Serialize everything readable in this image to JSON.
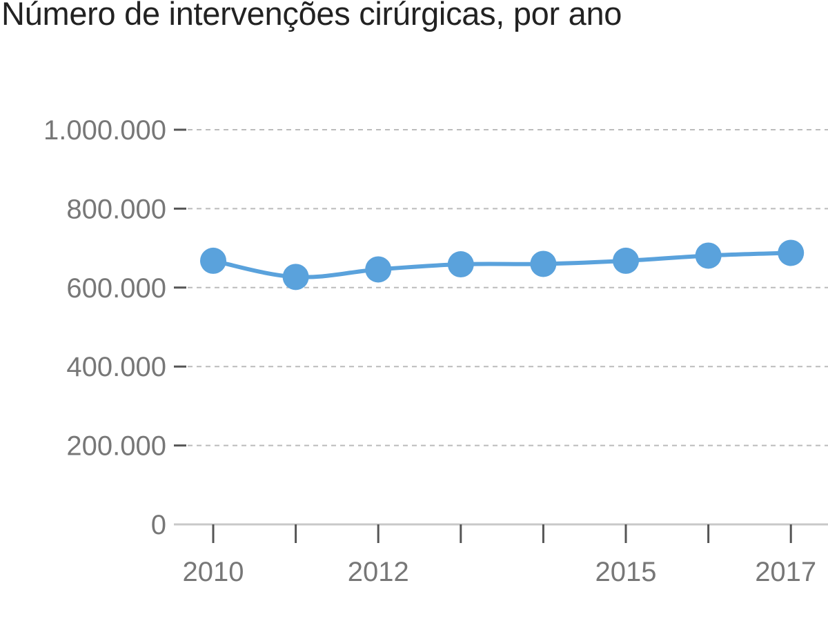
{
  "title": "Número de intervenções cirúrgicas, por ano",
  "colors": {
    "series": "#5aa2dc",
    "grid": "#bbbbbb",
    "axis": "#c8c8c8",
    "tick": "#555555",
    "tick_label": "#777777"
  },
  "chart_data": {
    "type": "line",
    "title": "Número de intervenções cirúrgicas, por ano",
    "xlabel": "",
    "ylabel": "",
    "x": [
      2010,
      2011,
      2012,
      2013,
      2014,
      2015,
      2016,
      2017
    ],
    "x_tick_labels": [
      "2010",
      "",
      "2012",
      "",
      "",
      "2015",
      "",
      "2017"
    ],
    "series": [
      {
        "values": [
          668000,
          627000,
          646000,
          659000,
          660000,
          668000,
          681000,
          688000
        ]
      }
    ],
    "ylim": [
      0,
      1000000
    ],
    "y_ticks": [
      0,
      200000,
      400000,
      600000,
      800000,
      1000000
    ],
    "y_tick_labels": [
      "0",
      "200.000",
      "400.000",
      "600.000",
      "800.000",
      "1.000.000"
    ],
    "grid": true,
    "legend": "none",
    "markers": true,
    "smooth": true
  }
}
